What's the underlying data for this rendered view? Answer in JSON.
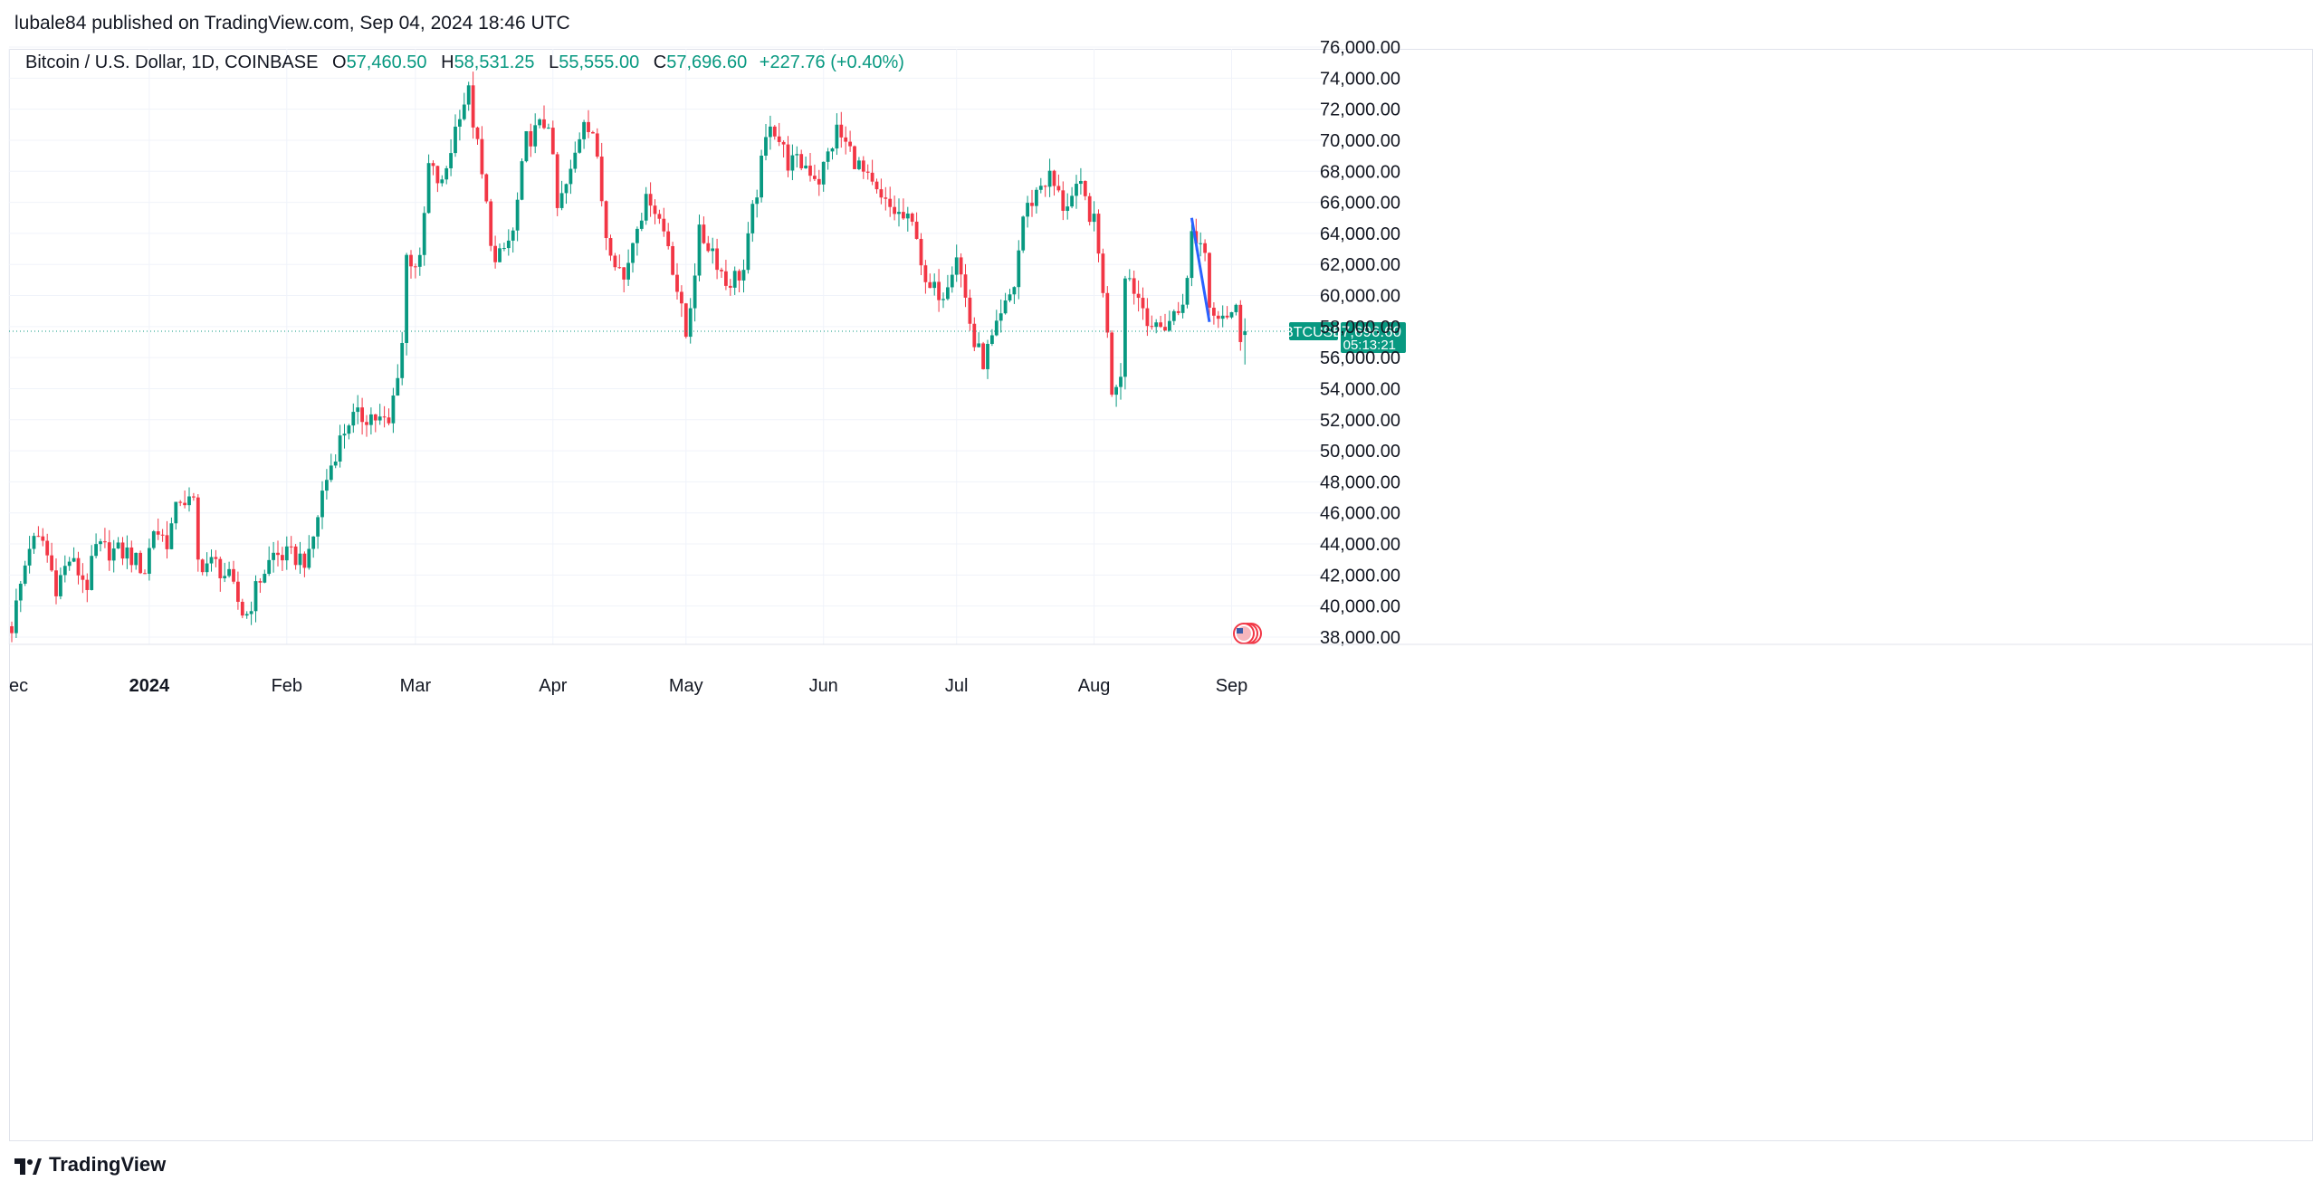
{
  "header": {
    "published_text": "lubale84 published on TradingView.com, Sep 04, 2024 18:46 UTC"
  },
  "legend": {
    "symbol_text": "Bitcoin / U.S. Dollar, 1D, COINBASE",
    "o_label": "O",
    "o_value": "57,460.50",
    "h_label": "H",
    "h_value": "58,531.25",
    "l_label": "L",
    "l_value": "55,555.00",
    "c_label": "C",
    "c_value": "57,696.60",
    "change": "+227.76 (+0.40%)"
  },
  "price_badge": {
    "symbol": "BTCUSD",
    "price": "57,696.60",
    "countdown": "05:13:21"
  },
  "footer": {
    "brand": "TradingView"
  },
  "colors": {
    "up": "#089981",
    "down": "#f23645",
    "trendline": "#2962ff",
    "grid": "#f0f3fa",
    "axis_text": "#131722"
  },
  "icons": [
    "us-flag-icon",
    "tradingview-logo-icon"
  ],
  "chart_data": {
    "type": "candlestick",
    "title": "Bitcoin / U.S. Dollar, 1D, COINBASE",
    "y_unit": "USD",
    "ylim": [
      37000,
      77000
    ],
    "y_ticks": [
      38000,
      40000,
      42000,
      44000,
      46000,
      48000,
      50000,
      52000,
      54000,
      56000,
      58000,
      60000,
      62000,
      64000,
      66000,
      68000,
      70000,
      72000,
      74000,
      76000
    ],
    "y_tick_labels": [
      "38,000.00",
      "40,000.00",
      "42,000.00",
      "44,000.00",
      "46,000.00",
      "48,000.00",
      "50,000.00",
      "52,000.00",
      "54,000.00",
      "56,000.00",
      "58,000.00",
      "60,000.00",
      "62,000.00",
      "64,000.00",
      "66,000.00",
      "68,000.00",
      "70,000.00",
      "72,000.00",
      "74,000.00",
      "76,000.00"
    ],
    "x_range": [
      "2023-12-01",
      "2024-10-01"
    ],
    "x_ticks": [
      {
        "date": "2023-12-01",
        "label": "ec",
        "bold": false
      },
      {
        "date": "2024-01-01",
        "label": "2024",
        "bold": true
      },
      {
        "date": "2024-02-01",
        "label": "Feb",
        "bold": false
      },
      {
        "date": "2024-03-01",
        "label": "Mar",
        "bold": false
      },
      {
        "date": "2024-04-01",
        "label": "Apr",
        "bold": false
      },
      {
        "date": "2024-05-01",
        "label": "May",
        "bold": false
      },
      {
        "date": "2024-06-01",
        "label": "Jun",
        "bold": false
      },
      {
        "date": "2024-07-01",
        "label": "Jul",
        "bold": false
      },
      {
        "date": "2024-08-01",
        "label": "Aug",
        "bold": false
      },
      {
        "date": "2024-09-01",
        "label": "Sep",
        "bold": false
      }
    ],
    "last_price": 57696.6,
    "grid": true,
    "trendline": {
      "from": {
        "date": "2024-08-23",
        "price": 65000
      },
      "to": {
        "date": "2024-08-27",
        "price": 58300
      }
    },
    "anchors": [
      {
        "date": "2023-12-01",
        "close": 38700
      },
      {
        "date": "2023-12-05",
        "close": 44000
      },
      {
        "date": "2023-12-08",
        "close": 44200
      },
      {
        "date": "2023-12-11",
        "close": 41300
      },
      {
        "date": "2023-12-14",
        "close": 43000
      },
      {
        "date": "2023-12-18",
        "close": 41400
      },
      {
        "date": "2023-12-20",
        "close": 43700
      },
      {
        "date": "2023-12-27",
        "close": 43400
      },
      {
        "date": "2023-12-31",
        "close": 42300
      },
      {
        "date": "2024-01-02",
        "close": 45000
      },
      {
        "date": "2024-01-05",
        "close": 44200
      },
      {
        "date": "2024-01-08",
        "close": 47000
      },
      {
        "date": "2024-01-11",
        "close": 46500
      },
      {
        "date": "2024-01-12",
        "close": 42800
      },
      {
        "date": "2024-01-16",
        "close": 42700
      },
      {
        "date": "2024-01-19",
        "close": 41700
      },
      {
        "date": "2024-01-22",
        "close": 39600
      },
      {
        "date": "2024-01-23",
        "close": 39500
      },
      {
        "date": "2024-01-26",
        "close": 41800
      },
      {
        "date": "2024-01-29",
        "close": 43300
      },
      {
        "date": "2024-02-02",
        "close": 43200
      },
      {
        "date": "2024-02-06",
        "close": 43000
      },
      {
        "date": "2024-02-09",
        "close": 47300
      },
      {
        "date": "2024-02-12",
        "close": 50000
      },
      {
        "date": "2024-02-15",
        "close": 52000
      },
      {
        "date": "2024-02-20",
        "close": 52300
      },
      {
        "date": "2024-02-24",
        "close": 51600
      },
      {
        "date": "2024-02-27",
        "close": 57000
      },
      {
        "date": "2024-02-28",
        "close": 62500
      },
      {
        "date": "2024-03-02",
        "close": 62000
      },
      {
        "date": "2024-03-04",
        "close": 68300
      },
      {
        "date": "2024-03-07",
        "close": 67000
      },
      {
        "date": "2024-03-11",
        "close": 72000
      },
      {
        "date": "2024-03-13",
        "close": 73000
      },
      {
        "date": "2024-03-15",
        "close": 69500
      },
      {
        "date": "2024-03-19",
        "close": 61900
      },
      {
        "date": "2024-03-23",
        "close": 64000
      },
      {
        "date": "2024-03-26",
        "close": 70000
      },
      {
        "date": "2024-03-31",
        "close": 71300
      },
      {
        "date": "2024-04-02",
        "close": 65500
      },
      {
        "date": "2024-04-05",
        "close": 67800
      },
      {
        "date": "2024-04-08",
        "close": 71600
      },
      {
        "date": "2024-04-10",
        "close": 70600
      },
      {
        "date": "2024-04-13",
        "close": 64000
      },
      {
        "date": "2024-04-17",
        "close": 61000
      },
      {
        "date": "2024-04-20",
        "close": 64900
      },
      {
        "date": "2024-04-23",
        "close": 66400
      },
      {
        "date": "2024-04-27",
        "close": 63400
      },
      {
        "date": "2024-05-01",
        "close": 57400
      },
      {
        "date": "2024-05-04",
        "close": 63900
      },
      {
        "date": "2024-05-07",
        "close": 63000
      },
      {
        "date": "2024-05-10",
        "close": 60800
      },
      {
        "date": "2024-05-14",
        "close": 61600
      },
      {
        "date": "2024-05-16",
        "close": 65300
      },
      {
        "date": "2024-05-20",
        "close": 71400
      },
      {
        "date": "2024-05-24",
        "close": 68600
      },
      {
        "date": "2024-05-28",
        "close": 68400
      },
      {
        "date": "2024-05-31",
        "close": 67500
      },
      {
        "date": "2024-06-04",
        "close": 70600
      },
      {
        "date": "2024-06-07",
        "close": 69300
      },
      {
        "date": "2024-06-11",
        "close": 67300
      },
      {
        "date": "2024-06-14",
        "close": 66000
      },
      {
        "date": "2024-06-18",
        "close": 65200
      },
      {
        "date": "2024-06-22",
        "close": 64200
      },
      {
        "date": "2024-06-24",
        "close": 60300
      },
      {
        "date": "2024-06-28",
        "close": 60300
      },
      {
        "date": "2024-07-01",
        "close": 62800
      },
      {
        "date": "2024-07-05",
        "close": 56800
      },
      {
        "date": "2024-07-07",
        "close": 55800
      },
      {
        "date": "2024-07-10",
        "close": 57700
      },
      {
        "date": "2024-07-14",
        "close": 60700
      },
      {
        "date": "2024-07-16",
        "close": 65100
      },
      {
        "date": "2024-07-20",
        "close": 67200
      },
      {
        "date": "2024-07-22",
        "close": 67600
      },
      {
        "date": "2024-07-25",
        "close": 65800
      },
      {
        "date": "2024-07-29",
        "close": 66800
      },
      {
        "date": "2024-08-01",
        "close": 64600
      },
      {
        "date": "2024-08-03",
        "close": 60600
      },
      {
        "date": "2024-08-05",
        "close": 54000
      },
      {
        "date": "2024-08-07",
        "close": 55100
      },
      {
        "date": "2024-08-08",
        "close": 61700
      },
      {
        "date": "2024-08-12",
        "close": 59300
      },
      {
        "date": "2024-08-15",
        "close": 57600
      },
      {
        "date": "2024-08-20",
        "close": 59000
      },
      {
        "date": "2024-08-22",
        "close": 60800
      },
      {
        "date": "2024-08-23",
        "close": 64000
      },
      {
        "date": "2024-08-26",
        "close": 63000
      },
      {
        "date": "2024-08-27",
        "close": 59300
      },
      {
        "date": "2024-08-31",
        "close": 58900
      },
      {
        "date": "2024-09-02",
        "close": 59000
      },
      {
        "date": "2024-09-03",
        "close": 57470
      },
      {
        "date": "2024-09-04",
        "open": 57460.5,
        "high": 58531.25,
        "low": 55555,
        "close": 57696.6
      }
    ]
  }
}
